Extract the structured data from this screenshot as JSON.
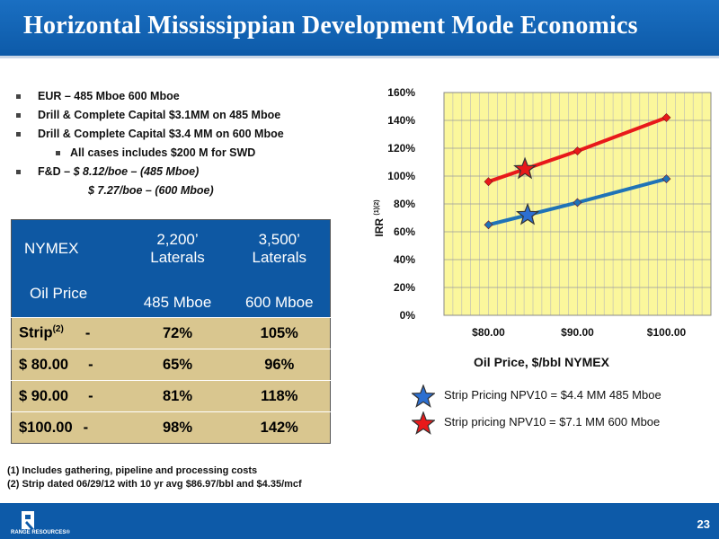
{
  "slide": {
    "title": "Horizontal Mississippian Development Mode Economics",
    "page_number": "23",
    "logo_text": "RANGE RESOURCES®"
  },
  "bullets": {
    "b1": "EUR – 485 Mboe 600 Mboe",
    "b2": "Drill & Complete Capital $3.1MM on 485 Mboe",
    "b3": "Drill & Complete Capital $3.4 MM on 600 Mboe",
    "b3_sub": "All cases includes $200 M for SWD",
    "b4_prefix": "F&D – ",
    "b4_value": "$  8.12/boe – (485 Mboe)",
    "b4_cont": "$ 7.27/boe – (600 Mboe)"
  },
  "table": {
    "header_nymex": "NYMEX",
    "header_col1_line1": "2,200’",
    "header_col1_line2": "Laterals",
    "header_col2_line1": "3,500’",
    "header_col2_line2": "Laterals",
    "header_oil_price": "Oil Price",
    "header_col1_mboe": "485 Mboe",
    "header_col2_mboe": "600 Mboe",
    "strip_label": "Strip",
    "strip_sup": "(2)",
    "dash": "-",
    "rows": [
      {
        "price": "",
        "col1": "72%",
        "col2": "105%"
      },
      {
        "price": "$ 80.00",
        "col1": "65%",
        "col2": "96%"
      },
      {
        "price": "$ 90.00",
        "col1": "81%",
        "col2": "118%"
      },
      {
        "price": "$100.00",
        "col1": "98%",
        "col2": "142%"
      }
    ]
  },
  "notes": {
    "n1": "(1)  Includes gathering, pipeline and processing costs",
    "n2": "(2)  Strip dated 06/29/12 with 10 yr avg $86.97/bbl and $4.35/mcf"
  },
  "legend": {
    "blue": "Strip Pricing NPV10 = $4.4 MM 485 Mboe",
    "red": "Strip pricing NPV10 =  $7.1 MM  600 Mboe"
  },
  "chart_data": {
    "type": "line",
    "xlabel": "Oil Price, $/bbl NYMEX",
    "ylabel": "IRR",
    "ylabel_sup": "(1)(2)",
    "x": [
      80,
      90,
      100
    ],
    "categories": [
      "$80.00",
      "$90.00",
      "$100.00"
    ],
    "yticks": [
      "0%",
      "20%",
      "40%",
      "60%",
      "80%",
      "100%",
      "120%",
      "140%",
      "160%"
    ],
    "ylim": [
      0,
      160
    ],
    "xlim": [
      75,
      105
    ],
    "grid": true,
    "plot_bg": "#fbf79c",
    "series": [
      {
        "color": "#1f73b7",
        "values": [
          65,
          81,
          98
        ]
      },
      {
        "color": "#e8191a",
        "values": [
          96,
          118,
          142
        ]
      }
    ],
    "markers": [
      {
        "color": "#2c6fd1",
        "x": 84.4,
        "y": 72
      },
      {
        "color": "#e8191a",
        "x": 84.1,
        "y": 105
      }
    ]
  },
  "colors": {
    "title_bar": "#0d5aa8",
    "table_header": "#0e58a3",
    "table_body": "#d9c68f"
  }
}
